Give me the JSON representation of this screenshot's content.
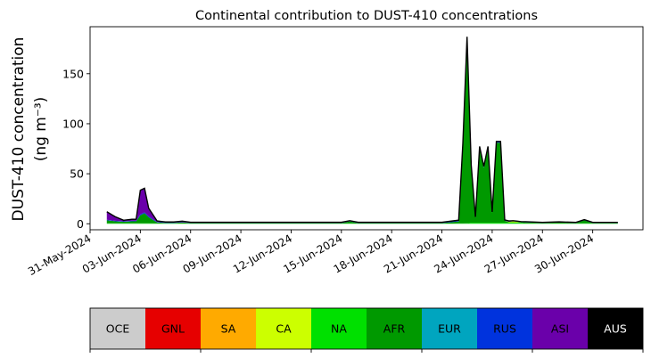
{
  "chart_data": {
    "type": "area",
    "title": "Continental contribution to DUST-410 concentrations",
    "ylabel_line1": "DUST-410 concentration",
    "ylabel_line2": "(ng m⁻³)",
    "xlabel": "",
    "x_range": [
      "2024-05-31T00:00",
      "2024-07-03T00:00"
    ],
    "x_ticks": [
      "31-May-2024",
      "03-Jun-2024",
      "06-Jun-2024",
      "09-Jun-2024",
      "12-Jun-2024",
      "15-Jun-2024",
      "18-Jun-2024",
      "21-Jun-2024",
      "24-Jun-2024",
      "27-Jun-2024",
      "30-Jun-2024"
    ],
    "y_ticks": [
      0,
      50,
      100,
      150
    ],
    "ylim": [
      -6,
      197
    ],
    "grid": false,
    "x": [
      "2024-06-01T00:00",
      "2024-06-01T12:00",
      "2024-06-02T00:00",
      "2024-06-02T12:00",
      "2024-06-02T18:00",
      "2024-06-03T00:00",
      "2024-06-03T06:00",
      "2024-06-03T12:00",
      "2024-06-04T00:00",
      "2024-06-04T12:00",
      "2024-06-05T00:00",
      "2024-06-05T12:00",
      "2024-06-06T00:00",
      "2024-06-08T00:00",
      "2024-06-10T00:00",
      "2024-06-12T00:00",
      "2024-06-14T00:00",
      "2024-06-15T00:00",
      "2024-06-15T12:00",
      "2024-06-16T00:00",
      "2024-06-17T00:00",
      "2024-06-19T00:00",
      "2024-06-21T00:00",
      "2024-06-22T00:00",
      "2024-06-22T06:00",
      "2024-06-22T12:00",
      "2024-06-22T18:00",
      "2024-06-23T00:00",
      "2024-06-23T06:00",
      "2024-06-23T12:00",
      "2024-06-23T18:00",
      "2024-06-24T00:00",
      "2024-06-24T06:00",
      "2024-06-24T12:00",
      "2024-06-24T18:00",
      "2024-06-25T00:00",
      "2024-06-25T06:00",
      "2024-06-25T12:00",
      "2024-06-25T18:00",
      "2024-06-26T00:00",
      "2024-06-27T00:00",
      "2024-06-28T00:00",
      "2024-06-29T00:00",
      "2024-06-29T12:00",
      "2024-06-30T00:00",
      "2024-07-01T00:00",
      "2024-07-01T12:00"
    ],
    "series": [
      {
        "name": "NA",
        "color": "#00e000",
        "values": [
          0.5,
          0.5,
          0.5,
          0.5,
          0.5,
          0.5,
          0.5,
          0.5,
          0.3,
          0.3,
          0.3,
          0.3,
          0.2,
          0.2,
          0.2,
          0.2,
          0.2,
          0.2,
          0.3,
          0.2,
          0.2,
          0.2,
          0.2,
          0.3,
          0.3,
          0.5,
          1,
          1,
          1,
          1,
          1,
          1,
          1,
          1,
          1,
          1,
          1,
          1,
          1,
          0.5,
          0.3,
          0.3,
          0.3,
          0.5,
          0.3,
          0.3,
          0.3
        ]
      },
      {
        "name": "AFR",
        "color": "#009900",
        "values": [
          3,
          2,
          1.5,
          2,
          2,
          8,
          10,
          6,
          1,
          0.5,
          0.5,
          1,
          0.5,
          0.5,
          0.5,
          0.5,
          0.5,
          0.5,
          2,
          0.5,
          0.5,
          0.5,
          0.5,
          2,
          75,
          176,
          55,
          5,
          75,
          55,
          75,
          10,
          80,
          80,
          2,
          0.5,
          0.5,
          0.5,
          0.5,
          1,
          0.5,
          1,
          0.5,
          3,
          0.5,
          0.5,
          0.5
        ]
      },
      {
        "name": "CA",
        "color": "#ccff00",
        "values": [
          0,
          0,
          0,
          0,
          0,
          0,
          0,
          0,
          0,
          0,
          0,
          0,
          0,
          0,
          0,
          0,
          0,
          0,
          0,
          0,
          0,
          0,
          0,
          0,
          0,
          0,
          0,
          0,
          0,
          0,
          0,
          0,
          0,
          0,
          0,
          0.5,
          1,
          0.5,
          0,
          0,
          0,
          0,
          0,
          0,
          0,
          0,
          0
        ]
      },
      {
        "name": "RUS",
        "color": "#0033dd",
        "values": [
          0.5,
          0.5,
          0.5,
          0.5,
          0.5,
          1,
          1,
          1,
          0.5,
          0.5,
          0.5,
          0.3,
          0.3,
          0.3,
          0.3,
          0.3,
          0.3,
          0.3,
          0.3,
          0.3,
          0.3,
          0.3,
          0.3,
          1,
          5,
          10,
          2,
          0.5,
          1,
          1,
          1,
          0.5,
          1,
          1,
          0.5,
          0.5,
          0.3,
          0.3,
          0.3,
          0.3,
          0.3,
          0.3,
          0.3,
          0.3,
          0.3,
          0.3,
          0.3
        ]
      },
      {
        "name": "ASI",
        "color": "#6a00aa",
        "values": [
          8,
          4,
          1,
          1.5,
          1.5,
          24,
          24,
          8,
          1,
          0.5,
          0.5,
          1,
          0.5,
          0.5,
          0.5,
          0.5,
          0.5,
          0.5,
          0.5,
          0.5,
          0.5,
          0.5,
          0.5,
          0.3,
          0.3,
          0.5,
          0.5,
          0.3,
          0.3,
          0.3,
          0.3,
          0.3,
          0.3,
          0.3,
          0.3,
          0.3,
          0.3,
          0.3,
          0.3,
          0.3,
          0.3,
          0.3,
          0.3,
          0.3,
          0.3,
          0.3,
          0.3
        ]
      }
    ]
  },
  "legend": {
    "placement": "bottom",
    "items": [
      {
        "label": "OCE",
        "color": "#cccccc",
        "text_color": "#000000"
      },
      {
        "label": "GNL",
        "color": "#e60000",
        "text_color": "#000000"
      },
      {
        "label": "SA",
        "color": "#ffaa00",
        "text_color": "#000000"
      },
      {
        "label": "CA",
        "color": "#ccff00",
        "text_color": "#000000"
      },
      {
        "label": "NA",
        "color": "#00e000",
        "text_color": "#000000"
      },
      {
        "label": "AFR",
        "color": "#009900",
        "text_color": "#000000"
      },
      {
        "label": "EUR",
        "color": "#00a5bf",
        "text_color": "#000000"
      },
      {
        "label": "RUS",
        "color": "#0033dd",
        "text_color": "#000000"
      },
      {
        "label": "ASI",
        "color": "#6a00aa",
        "text_color": "#000000"
      },
      {
        "label": "AUS",
        "color": "#000000",
        "text_color": "#ffffff"
      }
    ]
  }
}
